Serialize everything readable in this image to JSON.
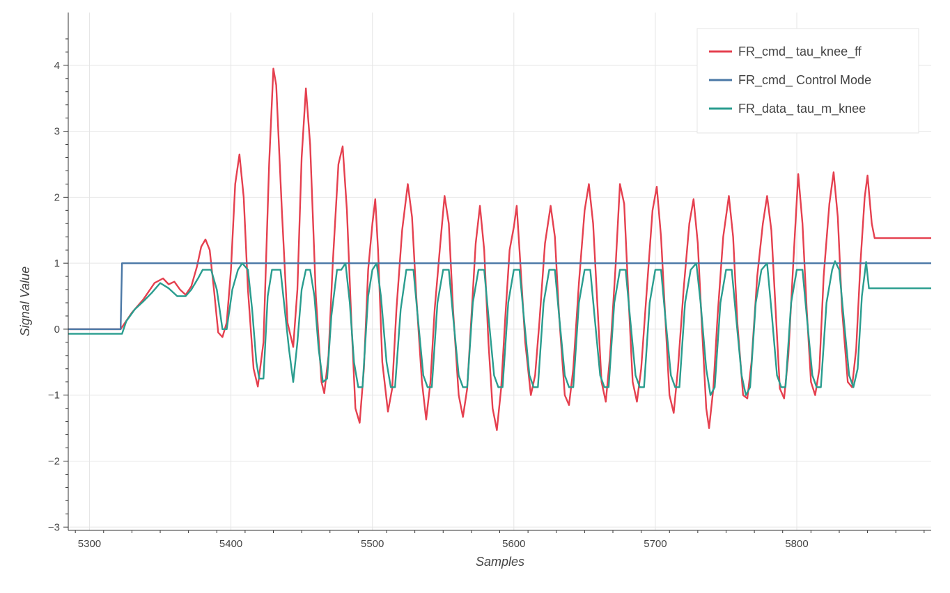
{
  "chart_data": {
    "type": "line",
    "title": "",
    "xlabel": "Samples",
    "ylabel": "Signal Value",
    "xlim": [
      5285,
      5895
    ],
    "ylim": [
      -3.05,
      4.8
    ],
    "x_ticks": [
      5300,
      5400,
      5500,
      5600,
      5700,
      5800
    ],
    "y_ticks": [
      -3,
      -2,
      -1,
      0,
      1,
      2,
      3,
      4
    ],
    "grid": true,
    "legend_position": "top-right",
    "colors": {
      "red": "#e5404f",
      "blue": "#4b78a6",
      "teal": "#2a9d8f",
      "grid": "#e5e5e5",
      "axis": "#333333"
    },
    "series": [
      {
        "name": "FR_cmd_ tau_knee_ff",
        "color": "#e5404f",
        "points": [
          [
            5285,
            0.0
          ],
          [
            5322,
            0.0
          ],
          [
            5330,
            0.25
          ],
          [
            5338,
            0.45
          ],
          [
            5346,
            0.7
          ],
          [
            5352,
            0.77
          ],
          [
            5356,
            0.68
          ],
          [
            5360,
            0.72
          ],
          [
            5364,
            0.6
          ],
          [
            5368,
            0.52
          ],
          [
            5372,
            0.65
          ],
          [
            5376,
            0.95
          ],
          [
            5379,
            1.25
          ],
          [
            5382,
            1.36
          ],
          [
            5385,
            1.2
          ],
          [
            5388,
            0.6
          ],
          [
            5391,
            -0.05
          ],
          [
            5394,
            -0.12
          ],
          [
            5397,
            0.1
          ],
          [
            5400,
            0.9
          ],
          [
            5403,
            2.2
          ],
          [
            5406,
            2.65
          ],
          [
            5409,
            2.0
          ],
          [
            5412,
            0.6
          ],
          [
            5416,
            -0.6
          ],
          [
            5419,
            -0.87
          ],
          [
            5423,
            -0.2
          ],
          [
            5427,
            2.5
          ],
          [
            5430,
            3.95
          ],
          [
            5432,
            3.7
          ],
          [
            5436,
            1.8
          ],
          [
            5440,
            0.1
          ],
          [
            5444,
            -0.27
          ],
          [
            5447,
            0.6
          ],
          [
            5450,
            2.6
          ],
          [
            5453,
            3.65
          ],
          [
            5456,
            2.8
          ],
          [
            5460,
            0.5
          ],
          [
            5464,
            -0.8
          ],
          [
            5466,
            -0.97
          ],
          [
            5469,
            -0.4
          ],
          [
            5472,
            1.0
          ],
          [
            5476,
            2.5
          ],
          [
            5479,
            2.77
          ],
          [
            5482,
            1.8
          ],
          [
            5485,
            0.2
          ],
          [
            5488,
            -1.2
          ],
          [
            5491,
            -1.42
          ],
          [
            5494,
            -0.6
          ],
          [
            5497,
            0.9
          ],
          [
            5500,
            1.6
          ],
          [
            5502,
            1.97
          ],
          [
            5504,
            1.2
          ],
          [
            5507,
            -0.5
          ],
          [
            5511,
            -1.25
          ],
          [
            5514,
            -0.9
          ],
          [
            5517,
            0.3
          ],
          [
            5521,
            1.5
          ],
          [
            5525,
            2.2
          ],
          [
            5528,
            1.7
          ],
          [
            5531,
            0.5
          ],
          [
            5535,
            -0.8
          ],
          [
            5538,
            -1.37
          ],
          [
            5541,
            -0.8
          ],
          [
            5544,
            0.3
          ],
          [
            5548,
            1.3
          ],
          [
            5551,
            2.02
          ],
          [
            5554,
            1.6
          ],
          [
            5557,
            0.3
          ],
          [
            5561,
            -1.0
          ],
          [
            5564,
            -1.33
          ],
          [
            5567,
            -0.9
          ],
          [
            5570,
            0.2
          ],
          [
            5573,
            1.3
          ],
          [
            5576,
            1.87
          ],
          [
            5579,
            1.2
          ],
          [
            5582,
            -0.2
          ],
          [
            5585,
            -1.2
          ],
          [
            5588,
            -1.53
          ],
          [
            5591,
            -0.9
          ],
          [
            5594,
            0.2
          ],
          [
            5597,
            1.2
          ],
          [
            5600,
            1.55
          ],
          [
            5602,
            1.87
          ],
          [
            5604,
            1.2
          ],
          [
            5608,
            -0.2
          ],
          [
            5612,
            -1.0
          ],
          [
            5615,
            -0.7
          ],
          [
            5618,
            0.1
          ],
          [
            5622,
            1.3
          ],
          [
            5626,
            1.87
          ],
          [
            5629,
            1.4
          ],
          [
            5632,
            0.2
          ],
          [
            5636,
            -1.0
          ],
          [
            5639,
            -1.15
          ],
          [
            5642,
            -0.6
          ],
          [
            5646,
            0.7
          ],
          [
            5650,
            1.8
          ],
          [
            5653,
            2.2
          ],
          [
            5656,
            1.6
          ],
          [
            5659,
            0.4
          ],
          [
            5662,
            -0.8
          ],
          [
            5665,
            -1.1
          ],
          [
            5668,
            -0.4
          ],
          [
            5672,
            1.0
          ],
          [
            5675,
            2.2
          ],
          [
            5678,
            1.9
          ],
          [
            5681,
            0.5
          ],
          [
            5684,
            -0.8
          ],
          [
            5687,
            -1.1
          ],
          [
            5690,
            -0.6
          ],
          [
            5694,
            0.6
          ],
          [
            5698,
            1.8
          ],
          [
            5701,
            2.16
          ],
          [
            5704,
            1.4
          ],
          [
            5707,
            0.2
          ],
          [
            5710,
            -1.0
          ],
          [
            5713,
            -1.27
          ],
          [
            5716,
            -0.6
          ],
          [
            5720,
            0.6
          ],
          [
            5724,
            1.6
          ],
          [
            5727,
            1.97
          ],
          [
            5730,
            1.3
          ],
          [
            5733,
            0.0
          ],
          [
            5736,
            -1.2
          ],
          [
            5738,
            -1.5
          ],
          [
            5741,
            -0.9
          ],
          [
            5744,
            0.2
          ],
          [
            5748,
            1.4
          ],
          [
            5752,
            2.02
          ],
          [
            5755,
            1.4
          ],
          [
            5758,
            0.1
          ],
          [
            5762,
            -1.0
          ],
          [
            5765,
            -1.05
          ],
          [
            5768,
            -0.5
          ],
          [
            5772,
            0.8
          ],
          [
            5776,
            1.6
          ],
          [
            5779,
            2.02
          ],
          [
            5782,
            1.5
          ],
          [
            5785,
            0.3
          ],
          [
            5788,
            -0.9
          ],
          [
            5791,
            -1.05
          ],
          [
            5794,
            -0.4
          ],
          [
            5798,
            1.2
          ],
          [
            5801,
            2.35
          ],
          [
            5804,
            1.6
          ],
          [
            5807,
            0.3
          ],
          [
            5810,
            -0.8
          ],
          [
            5813,
            -1.0
          ],
          [
            5816,
            -0.6
          ],
          [
            5819,
            0.8
          ],
          [
            5823,
            1.9
          ],
          [
            5826,
            2.38
          ],
          [
            5829,
            1.7
          ],
          [
            5832,
            0.3
          ],
          [
            5836,
            -0.8
          ],
          [
            5839,
            -0.88
          ],
          [
            5842,
            -0.3
          ],
          [
            5845,
            1.0
          ],
          [
            5848,
            2.0
          ],
          [
            5850,
            2.33
          ],
          [
            5853,
            1.6
          ],
          [
            5855,
            1.38
          ],
          [
            5895,
            1.38
          ]
        ]
      },
      {
        "name": "FR_cmd_ Control Mode",
        "color": "#4b78a6",
        "points": [
          [
            5285,
            0.0
          ],
          [
            5322,
            0.0
          ],
          [
            5323,
            1.0
          ],
          [
            5895,
            1.0
          ]
        ]
      },
      {
        "name": "FR_data_ tau_m_knee",
        "color": "#2a9d8f",
        "points": [
          [
            5285,
            -0.07
          ],
          [
            5323,
            -0.07
          ],
          [
            5326,
            0.12
          ],
          [
            5332,
            0.3
          ],
          [
            5338,
            0.42
          ],
          [
            5344,
            0.55
          ],
          [
            5350,
            0.7
          ],
          [
            5356,
            0.62
          ],
          [
            5362,
            0.5
          ],
          [
            5368,
            0.5
          ],
          [
            5372,
            0.6
          ],
          [
            5377,
            0.78
          ],
          [
            5380,
            0.9
          ],
          [
            5386,
            0.9
          ],
          [
            5390,
            0.6
          ],
          [
            5394,
            0.0
          ],
          [
            5397,
            0.0
          ],
          [
            5401,
            0.6
          ],
          [
            5405,
            0.9
          ],
          [
            5408,
            1.0
          ],
          [
            5412,
            0.9
          ],
          [
            5415,
            0.3
          ],
          [
            5418,
            -0.5
          ],
          [
            5420,
            -0.75
          ],
          [
            5423,
            -0.75
          ],
          [
            5426,
            0.5
          ],
          [
            5429,
            0.9
          ],
          [
            5435,
            0.9
          ],
          [
            5438,
            0.3
          ],
          [
            5441,
            -0.3
          ],
          [
            5444,
            -0.8
          ],
          [
            5447,
            -0.2
          ],
          [
            5450,
            0.6
          ],
          [
            5453,
            0.9
          ],
          [
            5456,
            0.9
          ],
          [
            5459,
            0.5
          ],
          [
            5462,
            -0.3
          ],
          [
            5465,
            -0.8
          ],
          [
            5468,
            -0.75
          ],
          [
            5471,
            0.2
          ],
          [
            5475,
            0.9
          ],
          [
            5478,
            0.9
          ],
          [
            5481,
            1.0
          ],
          [
            5484,
            0.4
          ],
          [
            5487,
            -0.5
          ],
          [
            5490,
            -0.88
          ],
          [
            5493,
            -0.88
          ],
          [
            5497,
            0.5
          ],
          [
            5500,
            0.9
          ],
          [
            5503,
            1.0
          ],
          [
            5506,
            0.5
          ],
          [
            5510,
            -0.5
          ],
          [
            5513,
            -0.88
          ],
          [
            5516,
            -0.88
          ],
          [
            5520,
            0.3
          ],
          [
            5524,
            0.9
          ],
          [
            5529,
            0.9
          ],
          [
            5532,
            0.2
          ],
          [
            5536,
            -0.7
          ],
          [
            5539,
            -0.88
          ],
          [
            5542,
            -0.88
          ],
          [
            5546,
            0.4
          ],
          [
            5550,
            0.9
          ],
          [
            5554,
            0.9
          ],
          [
            5557,
            0.2
          ],
          [
            5561,
            -0.7
          ],
          [
            5564,
            -0.88
          ],
          [
            5567,
            -0.88
          ],
          [
            5571,
            0.4
          ],
          [
            5575,
            0.9
          ],
          [
            5579,
            0.9
          ],
          [
            5582,
            0.2
          ],
          [
            5586,
            -0.7
          ],
          [
            5589,
            -0.88
          ],
          [
            5592,
            -0.88
          ],
          [
            5596,
            0.4
          ],
          [
            5600,
            0.9
          ],
          [
            5604,
            0.9
          ],
          [
            5607,
            0.2
          ],
          [
            5611,
            -0.7
          ],
          [
            5614,
            -0.88
          ],
          [
            5617,
            -0.88
          ],
          [
            5621,
            0.4
          ],
          [
            5625,
            0.9
          ],
          [
            5629,
            0.9
          ],
          [
            5632,
            0.2
          ],
          [
            5636,
            -0.7
          ],
          [
            5639,
            -0.88
          ],
          [
            5642,
            -0.88
          ],
          [
            5646,
            0.4
          ],
          [
            5650,
            0.9
          ],
          [
            5654,
            0.9
          ],
          [
            5657,
            0.2
          ],
          [
            5661,
            -0.7
          ],
          [
            5664,
            -0.88
          ],
          [
            5667,
            -0.88
          ],
          [
            5671,
            0.4
          ],
          [
            5675,
            0.9
          ],
          [
            5679,
            0.9
          ],
          [
            5682,
            0.2
          ],
          [
            5686,
            -0.7
          ],
          [
            5689,
            -0.88
          ],
          [
            5692,
            -0.88
          ],
          [
            5696,
            0.4
          ],
          [
            5700,
            0.9
          ],
          [
            5704,
            0.9
          ],
          [
            5707,
            0.2
          ],
          [
            5711,
            -0.7
          ],
          [
            5714,
            -0.88
          ],
          [
            5717,
            -0.88
          ],
          [
            5721,
            0.4
          ],
          [
            5725,
            0.9
          ],
          [
            5729,
            1.0
          ],
          [
            5732,
            0.4
          ],
          [
            5736,
            -0.6
          ],
          [
            5739,
            -1.0
          ],
          [
            5742,
            -0.88
          ],
          [
            5746,
            0.4
          ],
          [
            5750,
            0.9
          ],
          [
            5754,
            0.9
          ],
          [
            5757,
            0.2
          ],
          [
            5761,
            -0.7
          ],
          [
            5764,
            -1.0
          ],
          [
            5767,
            -0.88
          ],
          [
            5771,
            0.4
          ],
          [
            5775,
            0.9
          ],
          [
            5779,
            1.0
          ],
          [
            5782,
            0.3
          ],
          [
            5786,
            -0.7
          ],
          [
            5789,
            -0.88
          ],
          [
            5792,
            -0.88
          ],
          [
            5796,
            0.4
          ],
          [
            5800,
            0.9
          ],
          [
            5804,
            0.9
          ],
          [
            5807,
            0.2
          ],
          [
            5811,
            -0.7
          ],
          [
            5814,
            -0.88
          ],
          [
            5817,
            -0.88
          ],
          [
            5821,
            0.4
          ],
          [
            5825,
            0.9
          ],
          [
            5827,
            1.03
          ],
          [
            5830,
            0.9
          ],
          [
            5833,
            0.2
          ],
          [
            5837,
            -0.7
          ],
          [
            5840,
            -0.88
          ],
          [
            5843,
            -0.6
          ],
          [
            5846,
            0.5
          ],
          [
            5849,
            1.02
          ],
          [
            5851,
            0.62
          ],
          [
            5895,
            0.62
          ]
        ]
      }
    ]
  }
}
